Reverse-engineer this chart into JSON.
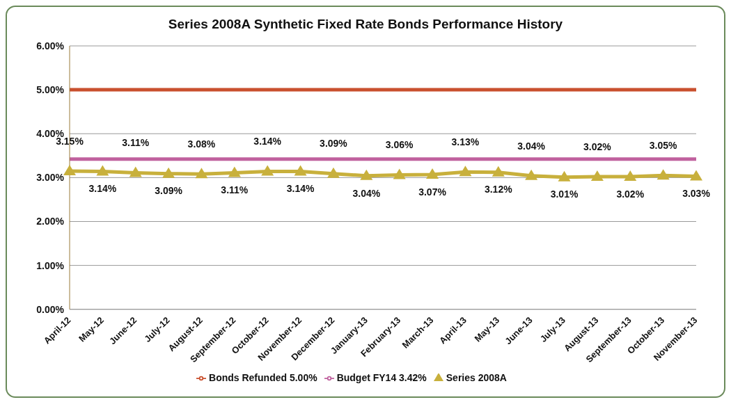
{
  "chart_data": {
    "type": "line",
    "title": "Series 2008A Synthetic Fixed Rate Bonds Performance History",
    "categories": [
      "April-12",
      "May-12",
      "June-12",
      "July-12",
      "August-12",
      "September-12",
      "October-12",
      "November-12",
      "December-12",
      "January-13",
      "February-13",
      "March-13",
      "April-13",
      "May-13",
      "June-13",
      "July-13",
      "August-13",
      "September-13",
      "October-13",
      "November-13"
    ],
    "series": [
      {
        "name": "Bonds Refunded 5.00%",
        "color": "#c9502e",
        "marker": "none",
        "values": [
          5,
          5,
          5,
          5,
          5,
          5,
          5,
          5,
          5,
          5,
          5,
          5,
          5,
          5,
          5,
          5,
          5,
          5,
          5,
          5
        ]
      },
      {
        "name": "Budget FY14 3.42%",
        "color": "#c0619e",
        "marker": "none",
        "values": [
          3.42,
          3.42,
          3.42,
          3.42,
          3.42,
          3.42,
          3.42,
          3.42,
          3.42,
          3.42,
          3.42,
          3.42,
          3.42,
          3.42,
          3.42,
          3.42,
          3.42,
          3.42,
          3.42,
          3.42
        ]
      },
      {
        "name": "Series 2008A",
        "color": "#c8b03c",
        "marker": "triangle",
        "values": [
          3.15,
          3.14,
          3.11,
          3.09,
          3.08,
          3.11,
          3.14,
          3.14,
          3.09,
          3.04,
          3.06,
          3.07,
          3.13,
          3.12,
          3.04,
          3.01,
          3.02,
          3.02,
          3.05,
          3.03
        ],
        "value_labels": [
          "3.15%",
          "3.14%",
          "3.11%",
          "3.09%",
          "3.08%",
          "3.11%",
          "3.14%",
          "3.14%",
          "3.09%",
          "3.04%",
          "3.06%",
          "3.07%",
          "3.13%",
          "3.12%",
          "3.04%",
          "3.01%",
          "3.02%",
          "3.02%",
          "3.05%",
          "3.03%"
        ]
      }
    ],
    "ylim": [
      0,
      6
    ],
    "yticks": [
      {
        "value": 0,
        "label": "0.00%"
      },
      {
        "value": 1,
        "label": "1.00%"
      },
      {
        "value": 2,
        "label": "2.00%"
      },
      {
        "value": 3,
        "label": "3.00%"
      },
      {
        "value": 4,
        "label": "4.00%"
      },
      {
        "value": 5,
        "label": "5.00%"
      },
      {
        "value": 6,
        "label": "6.00%"
      }
    ],
    "grid": "y",
    "legend": "bottom"
  }
}
